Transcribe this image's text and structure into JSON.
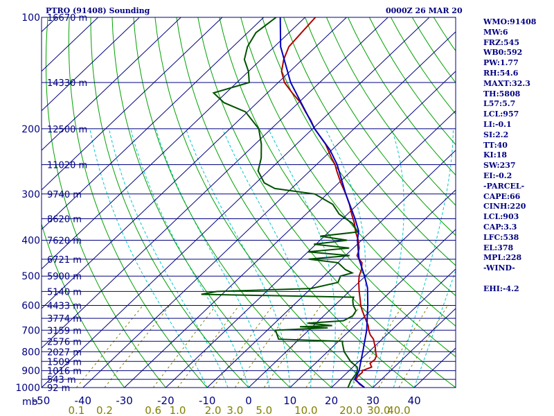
{
  "header": {
    "station": "PTRO (91408) Sounding",
    "valid_time": "0000Z 26 MAR 20"
  },
  "indices": [
    "WMO:91408",
    "MW:6",
    "FRZ:545",
    "WB0:592",
    "PW:1.77",
    "RH:54.6",
    "MAXT:32.3",
    "TH:5808",
    "L57:5.7",
    "LCL:957",
    "LI:-0.1",
    "SI:2.2",
    "TT:40",
    "KI:18",
    "SW:237",
    "EI:-0.2",
    "-PARCEL-",
    "CAPE:66",
    "CINH:220",
    "LCL:903",
    "CAP:3.3",
    "LFC:538",
    "EL:378",
    "MPL:228",
    "-WIND-",
    "",
    "EHI:-4.2"
  ],
  "colors": {
    "isobar": "#000080",
    "isotherm": "#000080",
    "dry_adiabat": "#00a000",
    "moist_adiabat": "#00c8c8",
    "mixing_ratio": "#808000",
    "temperature": "#b00000",
    "dewpoint": "#005000",
    "parcel": "#0000c0",
    "text": "#000080",
    "mixing_ratio_text": "#808000"
  },
  "chart_data": {
    "type": "skew-t",
    "title": "PTRO (91408) Sounding",
    "xlabel": "",
    "ylabel": "mb",
    "pressure_range": [
      1000,
      100
    ],
    "temperature_range": [
      -50,
      50
    ],
    "pressure_ticks": [
      1000,
      900,
      800,
      700,
      600,
      500,
      400,
      300,
      200,
      100
    ],
    "temperature_ticks": [
      -40,
      -30,
      -20,
      -10,
      0,
      10,
      20,
      30,
      40
    ],
    "mixing_ratio_ticks": [
      "0.1",
      "0.2",
      "0.6",
      "1.0",
      "2.0",
      "3.0",
      "5.0",
      "10.0",
      "20.0",
      "30.0",
      "40.0"
    ],
    "height_labels": [
      {
        "p": 100,
        "label": "16670 m"
      },
      {
        "p": 150,
        "label": "14330 m"
      },
      {
        "p": 200,
        "label": "12500 m"
      },
      {
        "p": 250,
        "label": "11020 m"
      },
      {
        "p": 300,
        "label": "9740 m"
      },
      {
        "p": 350,
        "label": "8620 m"
      },
      {
        "p": 400,
        "label": "7620 m"
      },
      {
        "p": 450,
        "label": "6721 m"
      },
      {
        "p": 500,
        "label": "5900 m"
      },
      {
        "p": 550,
        "label": "5140 m"
      },
      {
        "p": 600,
        "label": "4433 m"
      },
      {
        "p": 650,
        "label": "3774 m"
      },
      {
        "p": 700,
        "label": "3159 m"
      },
      {
        "p": 750,
        "label": "2576 m"
      },
      {
        "p": 800,
        "label": "2027 m"
      },
      {
        "p": 850,
        "label": "1509 m"
      },
      {
        "p": 900,
        "label": "1016 m"
      },
      {
        "p": 950,
        "label": "543 m"
      },
      {
        "p": 1000,
        "label": "92 m"
      }
    ],
    "series": [
      {
        "key": "temperature",
        "points": [
          [
            1000,
            28
          ],
          [
            980,
            26
          ],
          [
            960,
            24.5
          ],
          [
            950,
            23.8
          ],
          [
            930,
            23.5
          ],
          [
            910,
            23.6
          ],
          [
            900,
            23.2
          ],
          [
            880,
            24.5
          ],
          [
            860,
            23.2
          ],
          [
            840,
            23.4
          ],
          [
            820,
            22.8
          ],
          [
            800,
            21.6
          ],
          [
            780,
            20.5
          ],
          [
            760,
            19.2
          ],
          [
            740,
            17.9
          ],
          [
            720,
            16.0
          ],
          [
            700,
            14.5
          ],
          [
            680,
            13.2
          ],
          [
            660,
            11.5
          ],
          [
            640,
            9.8
          ],
          [
            620,
            8.0
          ],
          [
            600,
            6.3
          ],
          [
            580,
            4.8
          ],
          [
            560,
            3.2
          ],
          [
            550,
            2.4
          ],
          [
            520,
            0.0
          ],
          [
            500,
            -1.5
          ],
          [
            480,
            -2.6
          ],
          [
            460,
            -4.2
          ],
          [
            450,
            -5.8
          ],
          [
            440,
            -7.2
          ],
          [
            430,
            -7.8
          ],
          [
            420,
            -8.6
          ],
          [
            400,
            -10.8
          ],
          [
            380,
            -13.5
          ],
          [
            360,
            -16.0
          ],
          [
            340,
            -19.0
          ],
          [
            320,
            -22.0
          ],
          [
            300,
            -25.5
          ],
          [
            280,
            -29.5
          ],
          [
            260,
            -33.5
          ],
          [
            250,
            -35.5
          ],
          [
            240,
            -38.0
          ],
          [
            220,
            -43.0
          ],
          [
            200,
            -49.5
          ],
          [
            190,
            -52.5
          ],
          [
            180,
            -56.0
          ],
          [
            170,
            -59.5
          ],
          [
            160,
            -64.0
          ],
          [
            150,
            -68.5
          ],
          [
            140,
            -72.0
          ],
          [
            130,
            -74.5
          ],
          [
            120,
            -76.5
          ],
          [
            110,
            -77.0
          ],
          [
            100,
            -77.5
          ]
        ]
      },
      {
        "key": "dewpoint",
        "points": [
          [
            1000,
            24.0
          ],
          [
            960,
            23.0
          ],
          [
            920,
            22.5
          ],
          [
            900,
            22.0
          ],
          [
            880,
            21.0
          ],
          [
            860,
            19.0
          ],
          [
            850,
            18.0
          ],
          [
            800,
            14.0
          ],
          [
            760,
            11.5
          ],
          [
            750,
            11.0
          ],
          [
            740,
            -5.0
          ],
          [
            700,
            -8.0
          ],
          [
            690,
            4.0
          ],
          [
            685,
            -3.0
          ],
          [
            680,
            4.5
          ],
          [
            670,
            -2.0
          ],
          [
            660,
            6.0
          ],
          [
            640,
            7.0
          ],
          [
            620,
            6.5
          ],
          [
            600,
            4.5
          ],
          [
            580,
            3.0
          ],
          [
            570,
            2.5
          ],
          [
            560,
            -35.0
          ],
          [
            550,
            -32.0
          ],
          [
            540,
            -10.0
          ],
          [
            520,
            -5.0
          ],
          [
            510,
            -5.5
          ],
          [
            500,
            -6.0
          ],
          [
            490,
            -4.0
          ],
          [
            480,
            -6.5
          ],
          [
            460,
            -10.0
          ],
          [
            450,
            -18.0
          ],
          [
            440,
            -9.0
          ],
          [
            430,
            -20.0
          ],
          [
            420,
            -11.0
          ],
          [
            410,
            -20.5
          ],
          [
            400,
            -13.5
          ],
          [
            390,
            -21.0
          ],
          [
            380,
            -13.0
          ],
          [
            360,
            -16.5
          ],
          [
            340,
            -22.0
          ],
          [
            320,
            -26.0
          ],
          [
            300,
            -33.0
          ],
          [
            290,
            -44.0
          ],
          [
            280,
            -48.0
          ],
          [
            260,
            -52.5
          ],
          [
            240,
            -55.0
          ],
          [
            220,
            -58.5
          ],
          [
            200,
            -63.0
          ],
          [
            180,
            -70.5
          ],
          [
            170,
            -78.0
          ],
          [
            160,
            -83.0
          ],
          [
            150,
            -77.0
          ],
          [
            140,
            -80.0
          ],
          [
            130,
            -84.0
          ],
          [
            120,
            -86.5
          ],
          [
            110,
            -88.0
          ],
          [
            100,
            -87.0
          ]
        ]
      },
      {
        "key": "parcel",
        "points": [
          [
            1000,
            28.0
          ],
          [
            950,
            23.5
          ],
          [
            903,
            22.5
          ],
          [
            850,
            20.5
          ],
          [
            800,
            18.5
          ],
          [
            700,
            14.0
          ],
          [
            600,
            8.0
          ],
          [
            538,
            3.5
          ],
          [
            500,
            -0.2
          ],
          [
            450,
            -5.8
          ],
          [
            400,
            -11.0
          ],
          [
            378,
            -13.0
          ],
          [
            350,
            -17.0
          ],
          [
            300,
            -25.5
          ],
          [
            250,
            -35.0
          ],
          [
            228,
            -40.5
          ],
          [
            200,
            -49.5
          ],
          [
            150,
            -67.0
          ],
          [
            120,
            -78.5
          ],
          [
            100,
            -86.0
          ]
        ]
      }
    ],
    "grid": true,
    "legend": "none"
  }
}
